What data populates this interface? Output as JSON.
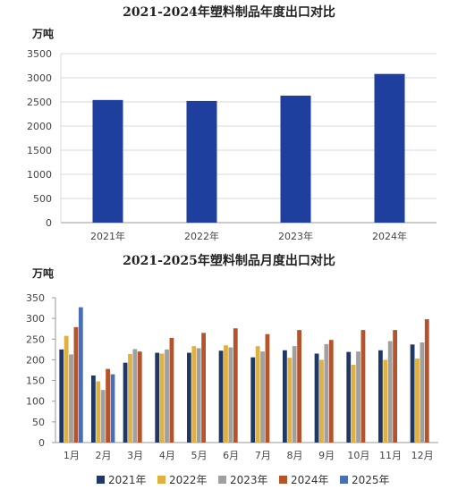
{
  "chart_data": [
    {
      "type": "bar",
      "title": "2021-2024年塑料制品年度出口对比",
      "unit": "万吨",
      "categories": [
        "2021年",
        "2022年",
        "2023年",
        "2024年"
      ],
      "values": [
        2540,
        2520,
        2630,
        3080
      ],
      "ylim": [
        0,
        3500
      ],
      "yticks": [
        0,
        500,
        1000,
        1500,
        2000,
        2500,
        3000,
        3500
      ],
      "grid": true,
      "colors": {
        "bar": "#1f3f9e"
      }
    },
    {
      "type": "bar",
      "title": "2021-2025年塑料制品月度出口对比",
      "unit": "万吨",
      "categories": [
        "1月",
        "2月",
        "3月",
        "4月",
        "5月",
        "6月",
        "7月",
        "8月",
        "9月",
        "10月",
        "11月",
        "12月"
      ],
      "ylim": [
        0,
        350
      ],
      "yticks": [
        0,
        50,
        100,
        150,
        200,
        250,
        300,
        350
      ],
      "grid": false,
      "legend": "bottom",
      "series": [
        {
          "name": "2021年",
          "color": "#1f3864",
          "values": [
            225,
            162,
            193,
            217,
            217,
            222,
            206,
            223,
            215,
            219,
            223,
            237
          ]
        },
        {
          "name": "2022年",
          "color": "#e0b040",
          "values": [
            258,
            148,
            214,
            215,
            233,
            235,
            233,
            205,
            200,
            188,
            200,
            203
          ]
        },
        {
          "name": "2023年",
          "color": "#a0a0a0",
          "values": [
            213,
            127,
            226,
            225,
            228,
            230,
            220,
            233,
            238,
            220,
            245,
            242
          ]
        },
        {
          "name": "2024年",
          "color": "#b5532b",
          "values": [
            279,
            178,
            220,
            253,
            265,
            276,
            262,
            272,
            248,
            272,
            272,
            298
          ]
        },
        {
          "name": "2025年",
          "color": "#4a6fb5",
          "values": [
            327,
            165,
            null,
            null,
            null,
            null,
            null,
            null,
            null,
            null,
            null,
            null
          ]
        }
      ]
    }
  ]
}
